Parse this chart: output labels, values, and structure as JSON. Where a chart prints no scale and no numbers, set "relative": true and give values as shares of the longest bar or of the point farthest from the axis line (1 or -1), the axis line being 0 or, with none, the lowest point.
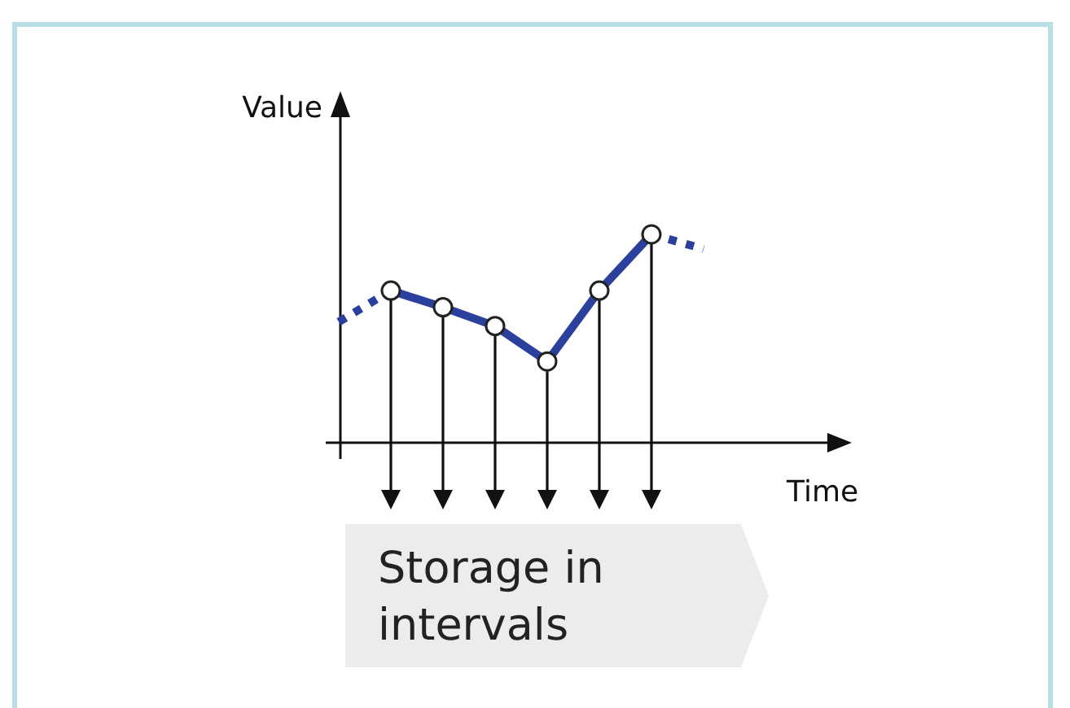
{
  "chart_data": {
    "type": "line",
    "xlabel": "Time",
    "ylabel": "Value",
    "relative": true,
    "categories": [
      null,
      null,
      null,
      null,
      null,
      null,
      null,
      null
    ],
    "series": [
      {
        "color": "#2b3f9c",
        "line_style": "dotted",
        "values": [
          0.58,
          0.73,
          null,
          null,
          null,
          null,
          null,
          null
        ]
      },
      {
        "color": "#2b3f9c",
        "line_style": "solid",
        "marker": "circle",
        "values": [
          null,
          0.73,
          0.65,
          0.56,
          0.39,
          0.73,
          1,
          null
        ]
      },
      {
        "color": "#2b3f9c",
        "line_style": "dotted",
        "values": [
          null,
          null,
          null,
          null,
          null,
          null,
          1,
          0.93
        ]
      }
    ],
    "annotations": [
      "Storage in intervals"
    ]
  }
}
